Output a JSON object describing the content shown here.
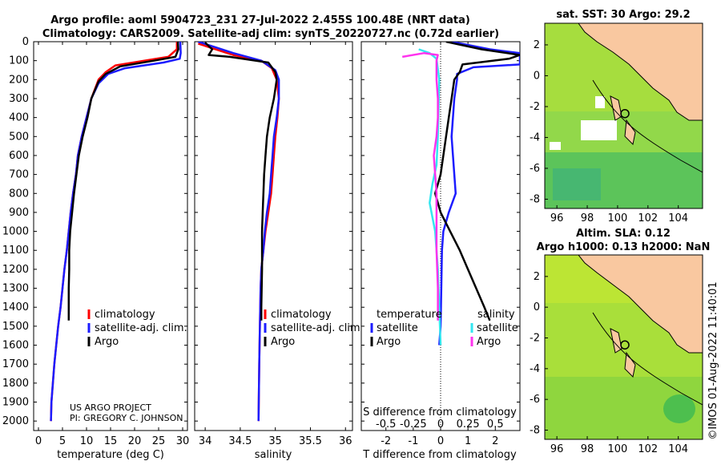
{
  "header": {
    "title_line1": "Argo profile: aoml 5904723_231 27-Jul-2022 2.455S 100.48E (NRT data)",
    "title_line2": "Climatology: CARS2009. Satellite-adj clim: synTS_20220727.nc (0.72d earlier)"
  },
  "colors": {
    "climatology": "#ff0000",
    "satellite": "#1c1cff",
    "argo": "#000000",
    "sat_salinity": "#33e6f0",
    "argo_salinity": "#ff33ee",
    "land": "#f9c8a0",
    "ocean": "#8ad63a"
  },
  "chart_data": [
    {
      "id": "temperature-profile",
      "type": "line",
      "xlabel": "temperature (deg C)",
      "ylabel": "",
      "xlim": [
        -1,
        31
      ],
      "ylim": [
        2050,
        0
      ],
      "xticks": [
        0,
        5,
        10,
        15,
        20,
        25,
        30
      ],
      "yticks": [
        0,
        100,
        200,
        300,
        400,
        500,
        600,
        700,
        800,
        900,
        1000,
        1100,
        1200,
        1300,
        1400,
        1500,
        1600,
        1700,
        1800,
        1900,
        2000
      ],
      "series": [
        {
          "name": "climatology",
          "color": "#ff0000",
          "width": 2.5,
          "points": [
            [
              28.8,
              0
            ],
            [
              28.8,
              40
            ],
            [
              27.0,
              80
            ],
            [
              22,
              100
            ],
            [
              16,
              125
            ],
            [
              14,
              160
            ],
            [
              12.5,
              200
            ],
            [
              11,
              300
            ],
            [
              10,
              400
            ],
            [
              9.0,
              500
            ],
            [
              8.2,
              600
            ],
            [
              7.8,
              700
            ],
            [
              7.2,
              800
            ],
            [
              6.7,
              900
            ],
            [
              6.3,
              1000
            ],
            [
              5.9,
              1100
            ],
            [
              5.4,
              1200
            ],
            [
              5.0,
              1300
            ],
            [
              4.6,
              1400
            ],
            [
              4.1,
              1500
            ],
            [
              3.7,
              1600
            ],
            [
              3.3,
              1700
            ],
            [
              3.0,
              1800
            ],
            [
              2.7,
              1900
            ],
            [
              2.6,
              2000
            ]
          ]
        },
        {
          "name": "satellite-adj. clim.",
          "color": "#1c1cff",
          "width": 2.5,
          "points": [
            [
              29.5,
              0
            ],
            [
              29.6,
              60
            ],
            [
              29.4,
              90
            ],
            [
              26,
              110
            ],
            [
              18,
              140
            ],
            [
              14.5,
              170
            ],
            [
              12.5,
              220
            ],
            [
              11,
              300
            ],
            [
              10,
              400
            ],
            [
              9.0,
              500
            ],
            [
              8.2,
              600
            ],
            [
              7.8,
              700
            ],
            [
              7.2,
              800
            ],
            [
              6.7,
              900
            ],
            [
              6.3,
              1000
            ],
            [
              5.9,
              1100
            ],
            [
              5.4,
              1200
            ],
            [
              5.0,
              1300
            ],
            [
              4.6,
              1400
            ],
            [
              4.1,
              1500
            ],
            [
              3.7,
              1600
            ],
            [
              3.3,
              1700
            ],
            [
              3.0,
              1800
            ],
            [
              2.7,
              1900
            ],
            [
              2.6,
              2000
            ]
          ]
        },
        {
          "name": "Argo",
          "color": "#000000",
          "width": 2.5,
          "points": [
            [
              29.0,
              0
            ],
            [
              29.1,
              40
            ],
            [
              28.5,
              80
            ],
            [
              24,
              100
            ],
            [
              17,
              130
            ],
            [
              14,
              170
            ],
            [
              12.5,
              210
            ],
            [
              11,
              300
            ],
            [
              10.2,
              400
            ],
            [
              9.2,
              500
            ],
            [
              8.4,
              600
            ],
            [
              7.9,
              700
            ],
            [
              7.4,
              800
            ],
            [
              7.0,
              900
            ],
            [
              6.6,
              1000
            ],
            [
              6.4,
              1100
            ],
            [
              6.4,
              1200
            ],
            [
              6.3,
              1300
            ],
            [
              6.3,
              1400
            ],
            [
              6.3,
              1470
            ]
          ]
        }
      ],
      "legend": [
        "climatology",
        "satellite-adj. clim.",
        "Argo"
      ],
      "annotations": [
        "US ARGO PROJECT",
        "PI: GREGORY C. JOHNSON"
      ]
    },
    {
      "id": "salinity-profile",
      "type": "line",
      "xlabel": "salinity",
      "xlim": [
        33.85,
        36.1
      ],
      "ylim": [
        2050,
        0
      ],
      "xticks": [
        34,
        34.5,
        35,
        35.5,
        36
      ],
      "xtick_labels": [
        "34",
        "34.5",
        "35",
        "35.5",
        "36"
      ],
      "series": [
        {
          "name": "climatology",
          "color": "#ff0000",
          "width": 2.5,
          "points": [
            [
              33.9,
              10
            ],
            [
              34.15,
              40
            ],
            [
              34.4,
              70
            ],
            [
              34.8,
              100
            ],
            [
              34.95,
              140
            ],
            [
              35.02,
              200
            ],
            [
              35.05,
              300
            ],
            [
              35.03,
              400
            ],
            [
              35.0,
              500
            ],
            [
              34.98,
              600
            ],
            [
              34.96,
              700
            ],
            [
              34.94,
              800
            ],
            [
              34.9,
              900
            ],
            [
              34.86,
              1000
            ],
            [
              34.83,
              1100
            ],
            [
              34.8,
              1200
            ],
            [
              34.79,
              1300
            ],
            [
              34.78,
              1500
            ],
            [
              34.77,
              1700
            ],
            [
              34.76,
              2000
            ]
          ]
        },
        {
          "name": "satellite-adj. clim.",
          "color": "#1c1cff",
          "width": 2.5,
          "points": [
            [
              33.9,
              0
            ],
            [
              34.15,
              30
            ],
            [
              34.4,
              60
            ],
            [
              34.8,
              100
            ],
            [
              35.0,
              150
            ],
            [
              35.05,
              200
            ],
            [
              35.05,
              300
            ],
            [
              35.02,
              400
            ],
            [
              34.98,
              500
            ],
            [
              34.96,
              600
            ],
            [
              34.94,
              700
            ],
            [
              34.92,
              800
            ],
            [
              34.88,
              900
            ],
            [
              34.85,
              1000
            ],
            [
              34.83,
              1100
            ],
            [
              34.8,
              1200
            ],
            [
              34.79,
              1300
            ],
            [
              34.78,
              1500
            ],
            [
              34.77,
              1700
            ],
            [
              34.76,
              2000
            ]
          ]
        },
        {
          "name": "Argo",
          "color": "#000000",
          "width": 2.5,
          "points": [
            [
              34.0,
              5
            ],
            [
              34.1,
              40
            ],
            [
              34.05,
              70
            ],
            [
              34.35,
              80
            ],
            [
              34.9,
              110
            ],
            [
              35.0,
              160
            ],
            [
              35.02,
              200
            ],
            [
              34.98,
              300
            ],
            [
              34.92,
              400
            ],
            [
              34.88,
              500
            ],
            [
              34.86,
              600
            ],
            [
              34.84,
              700
            ],
            [
              34.83,
              800
            ],
            [
              34.82,
              900
            ],
            [
              34.81,
              1000
            ],
            [
              34.81,
              1200
            ],
            [
              34.8,
              1400
            ],
            [
              34.8,
              1470
            ]
          ]
        }
      ],
      "legend": [
        "climatology",
        "satellite-adj. clim.",
        "Argo"
      ]
    },
    {
      "id": "difference-profile",
      "type": "line",
      "xlabel": "T difference from climatology",
      "x2label": "S difference from climatology",
      "xlim": [
        -2.9,
        2.9
      ],
      "ylim": [
        2050,
        0
      ],
      "xticks": [
        -2,
        -1,
        0,
        1,
        2
      ],
      "xtick_labels": [
        "-2",
        "-1",
        "0",
        "1",
        "2"
      ],
      "x2ticks": [
        -2,
        -1,
        0,
        1,
        2
      ],
      "x2tick_labels": [
        "-0.5",
        "-0.25",
        "0",
        "0.25",
        "0.5"
      ],
      "series": [
        {
          "name": "T satellite",
          "color": "#1c1cff",
          "width": 2.5,
          "points": [
            [
              0.4,
              0
            ],
            [
              1.8,
              40
            ],
            [
              2.9,
              60
            ],
            [
              2.9,
              120
            ],
            [
              1.2,
              135
            ],
            [
              0.6,
              170
            ],
            [
              0.6,
              200
            ],
            [
              0.5,
              300
            ],
            [
              0.45,
              400
            ],
            [
              0.4,
              500
            ],
            [
              0.45,
              600
            ],
            [
              0.5,
              700
            ],
            [
              0.55,
              800
            ],
            [
              0.3,
              900
            ],
            [
              0.1,
              1000
            ],
            [
              0.05,
              1100
            ],
            [
              0.0,
              1500
            ],
            [
              -0.05,
              1600
            ]
          ]
        },
        {
          "name": "T Argo",
          "color": "#000000",
          "width": 2.5,
          "points": [
            [
              0.2,
              0
            ],
            [
              1.5,
              40
            ],
            [
              2.9,
              70
            ],
            [
              2.5,
              90
            ],
            [
              0.8,
              120
            ],
            [
              0.7,
              160
            ],
            [
              0.5,
              200
            ],
            [
              0.4,
              300
            ],
            [
              0.3,
              400
            ],
            [
              0.2,
              500
            ],
            [
              0.1,
              600
            ],
            [
              0.0,
              700
            ],
            [
              -0.2,
              800
            ],
            [
              0.0,
              900
            ],
            [
              0.35,
              1000
            ],
            [
              0.7,
              1100
            ],
            [
              1.0,
              1200
            ],
            [
              1.3,
              1300
            ],
            [
              1.6,
              1400
            ],
            [
              1.8,
              1470
            ]
          ]
        },
        {
          "name": "S satellite",
          "color": "#33e6f0",
          "width": 2.5,
          "points": [
            [
              -0.8,
              40
            ],
            [
              -0.4,
              60
            ],
            [
              -0.15,
              90
            ],
            [
              -0.05,
              200
            ],
            [
              -0.1,
              500
            ],
            [
              -0.15,
              650
            ],
            [
              -0.3,
              750
            ],
            [
              -0.4,
              850
            ],
            [
              -0.2,
              1000
            ],
            [
              -0.1,
              1200
            ],
            [
              -0.05,
              1400
            ],
            [
              0.0,
              1600
            ]
          ]
        },
        {
          "name": "S Argo",
          "color": "#ff33ee",
          "width": 2.5,
          "points": [
            [
              -1.4,
              80
            ],
            [
              -0.6,
              60
            ],
            [
              -0.1,
              70
            ],
            [
              -0.15,
              100
            ],
            [
              -0.15,
              200
            ],
            [
              -0.1,
              300
            ],
            [
              -0.1,
              400
            ],
            [
              -0.15,
              500
            ],
            [
              -0.25,
              600
            ],
            [
              -0.2,
              700
            ],
            [
              -0.15,
              800
            ],
            [
              -0.15,
              900
            ],
            [
              -0.15,
              1000
            ],
            [
              -0.15,
              1100
            ],
            [
              -0.1,
              1300
            ],
            [
              -0.1,
              1470
            ]
          ]
        }
      ],
      "legend_groups": [
        {
          "heading": "temperature",
          "items": [
            "satellite",
            "Argo"
          ]
        },
        {
          "heading": "salinity",
          "items": [
            "satellite",
            "Argo"
          ]
        }
      ]
    },
    {
      "id": "sst-map",
      "type": "heatmap",
      "title": "sat. SST: 30 Argo: 29.2",
      "xlim": [
        95.2,
        105.6
      ],
      "ylim": [
        -8.6,
        3.4
      ],
      "xticks": [
        96,
        98,
        100,
        102,
        104
      ],
      "yticks": [
        2,
        0,
        -2,
        -4,
        -6,
        -8
      ],
      "argo_position": [
        100.48,
        -2.455
      ]
    },
    {
      "id": "sla-map",
      "type": "heatmap",
      "title_line1": "Altim. SLA: 0.12",
      "title_line2": "Argo h1000: 0.13 h2000: NaN",
      "xlim": [
        95.2,
        105.6
      ],
      "ylim": [
        -8.6,
        3.4
      ],
      "xticks": [
        96,
        98,
        100,
        102,
        104
      ],
      "yticks": [
        2,
        0,
        -2,
        -4,
        -6,
        -8
      ],
      "argo_position": [
        100.48,
        -2.455
      ]
    }
  ],
  "footer": {
    "stamp": "©IMOS 01-Aug-2022 11:40:01"
  }
}
